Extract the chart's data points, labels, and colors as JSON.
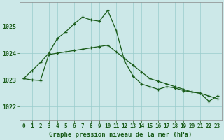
{
  "title": "Graphe pression niveau de la mer (hPa)",
  "background_color": "#cce8e8",
  "grid_color": "#99cccc",
  "line_color": "#1a5c1a",
  "x_labels": [
    "0",
    "1",
    "2",
    "3",
    "4",
    "5",
    "6",
    "7",
    "8",
    "9",
    "10",
    "11",
    "12",
    "13",
    "14",
    "15",
    "16",
    "17",
    "18",
    "19",
    "20",
    "21",
    "22",
    "23"
  ],
  "line1_x": [
    0,
    1,
    2,
    3,
    4,
    5,
    6,
    7,
    8,
    9,
    10,
    11,
    12,
    13,
    14,
    15,
    16,
    17,
    18,
    19,
    20,
    21,
    22,
    23
  ],
  "line1_y": [
    1023.05,
    1023.35,
    1023.65,
    1024.0,
    1024.55,
    1024.8,
    1025.1,
    1025.35,
    1025.25,
    1025.2,
    1025.6,
    1024.85,
    1023.7,
    1023.15,
    1022.85,
    1022.75,
    1022.65,
    1022.75,
    1022.7,
    1022.6,
    1022.55,
    1022.5,
    1022.2,
    1022.4
  ],
  "line2_x": [
    0,
    1,
    2,
    3,
    4,
    5,
    6,
    7,
    8,
    9,
    10,
    11,
    12,
    13,
    14,
    15,
    16,
    17,
    18,
    19,
    20,
    21,
    22,
    23
  ],
  "line2_y": [
    1023.05,
    1023.0,
    1022.98,
    1023.95,
    1024.0,
    1024.05,
    1024.1,
    1024.15,
    1024.2,
    1024.25,
    1024.3,
    1024.05,
    1023.8,
    1023.55,
    1023.3,
    1023.05,
    1022.95,
    1022.85,
    1022.75,
    1022.65,
    1022.55,
    1022.5,
    1022.4,
    1022.3
  ],
  "ylim": [
    1021.5,
    1025.9
  ],
  "yticks": [
    1022,
    1023,
    1024,
    1025
  ],
  "marker": "+",
  "markersize": 3.5,
  "linewidth": 0.9,
  "tick_fontsize": 5.5,
  "title_fontsize": 6.5,
  "tick_color": "#1a5c1a",
  "title_color": "#1a5c1a"
}
